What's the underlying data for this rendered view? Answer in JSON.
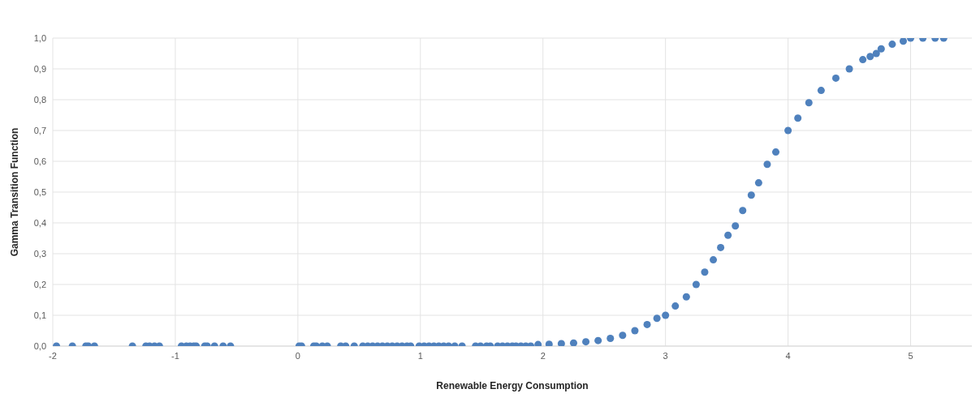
{
  "chart_data": {
    "type": "scatter",
    "xlabel": "Renewable Energy Consumption",
    "ylabel": "Gamma Transition Function",
    "x": [
      -1.97,
      -1.84,
      -1.73,
      -1.71,
      -1.66,
      -1.35,
      -1.24,
      -1.21,
      -1.17,
      -1.13,
      -0.95,
      -0.91,
      -0.88,
      -0.85,
      -0.83,
      -0.76,
      -0.74,
      -0.68,
      -0.61,
      -0.55,
      0.01,
      0.03,
      0.13,
      0.15,
      0.2,
      0.24,
      0.35,
      0.39,
      0.46,
      0.53,
      0.57,
      0.61,
      0.65,
      0.69,
      0.73,
      0.77,
      0.81,
      0.85,
      0.89,
      0.92,
      0.99,
      1.03,
      1.07,
      1.11,
      1.15,
      1.19,
      1.23,
      1.28,
      1.34,
      1.45,
      1.49,
      1.54,
      1.57,
      1.63,
      1.67,
      1.71,
      1.75,
      1.78,
      1.82,
      1.86,
      1.9,
      1.96,
      2.05,
      2.15,
      2.25,
      2.35,
      2.45,
      2.55,
      2.65,
      2.75,
      2.85,
      2.93,
      3.0,
      3.08,
      3.17,
      3.25,
      3.32,
      3.39,
      3.45,
      3.51,
      3.57,
      3.63,
      3.7,
      3.76,
      3.83,
      3.9,
      4.0,
      4.08,
      4.17,
      4.27,
      4.39,
      4.5,
      4.61,
      4.67,
      4.72,
      4.76,
      4.85,
      4.94,
      5.0,
      5.1,
      5.2,
      5.27
    ],
    "series": [
      {
        "color": "#4f81bd",
        "values": [
          0,
          0,
          0,
          0,
          0,
          0,
          0,
          0,
          0,
          0,
          0,
          0,
          0,
          0,
          0,
          0,
          0,
          0,
          0,
          0,
          0,
          0,
          0,
          0,
          0,
          0,
          0,
          0,
          0,
          0,
          0,
          0,
          0,
          0,
          0,
          0,
          0,
          0,
          0,
          0,
          0,
          0,
          0,
          0,
          0,
          0,
          0,
          0,
          0,
          0,
          0,
          0,
          0,
          0,
          0,
          0,
          0,
          0,
          0,
          0,
          0,
          0.005,
          0.006,
          0.008,
          0.01,
          0.014,
          0.018,
          0.025,
          0.035,
          0.05,
          0.07,
          0.09,
          0.1,
          0.13,
          0.16,
          0.2,
          0.24,
          0.28,
          0.32,
          0.36,
          0.39,
          0.44,
          0.49,
          0.53,
          0.59,
          0.63,
          0.7,
          0.74,
          0.79,
          0.83,
          0.87,
          0.9,
          0.93,
          0.94,
          0.95,
          0.965,
          0.98,
          0.99,
          1.0,
          1.0,
          1.0,
          1.0
        ]
      }
    ],
    "xlim": [
      -2,
      5.5
    ],
    "xticks": [
      -2,
      -1,
      0,
      1,
      2,
      3,
      4,
      5
    ],
    "ylim": [
      0,
      1
    ],
    "yticks": [
      {
        "value": 0,
        "label": "0,0"
      },
      {
        "value": 0.1,
        "label": "0,1"
      },
      {
        "value": 0.2,
        "label": "0,2"
      },
      {
        "value": 0.3,
        "label": "0,3"
      },
      {
        "value": 0.4,
        "label": "0,4"
      },
      {
        "value": 0.5,
        "label": "0,5"
      },
      {
        "value": 0.6,
        "label": "0,6"
      },
      {
        "value": 0.7,
        "label": "0,7"
      },
      {
        "value": 0.8,
        "label": "0,8"
      },
      {
        "value": 0.9,
        "label": "0,9"
      },
      {
        "value": 1,
        "label": "1,0"
      }
    ],
    "grid": true,
    "marker": "circle"
  }
}
